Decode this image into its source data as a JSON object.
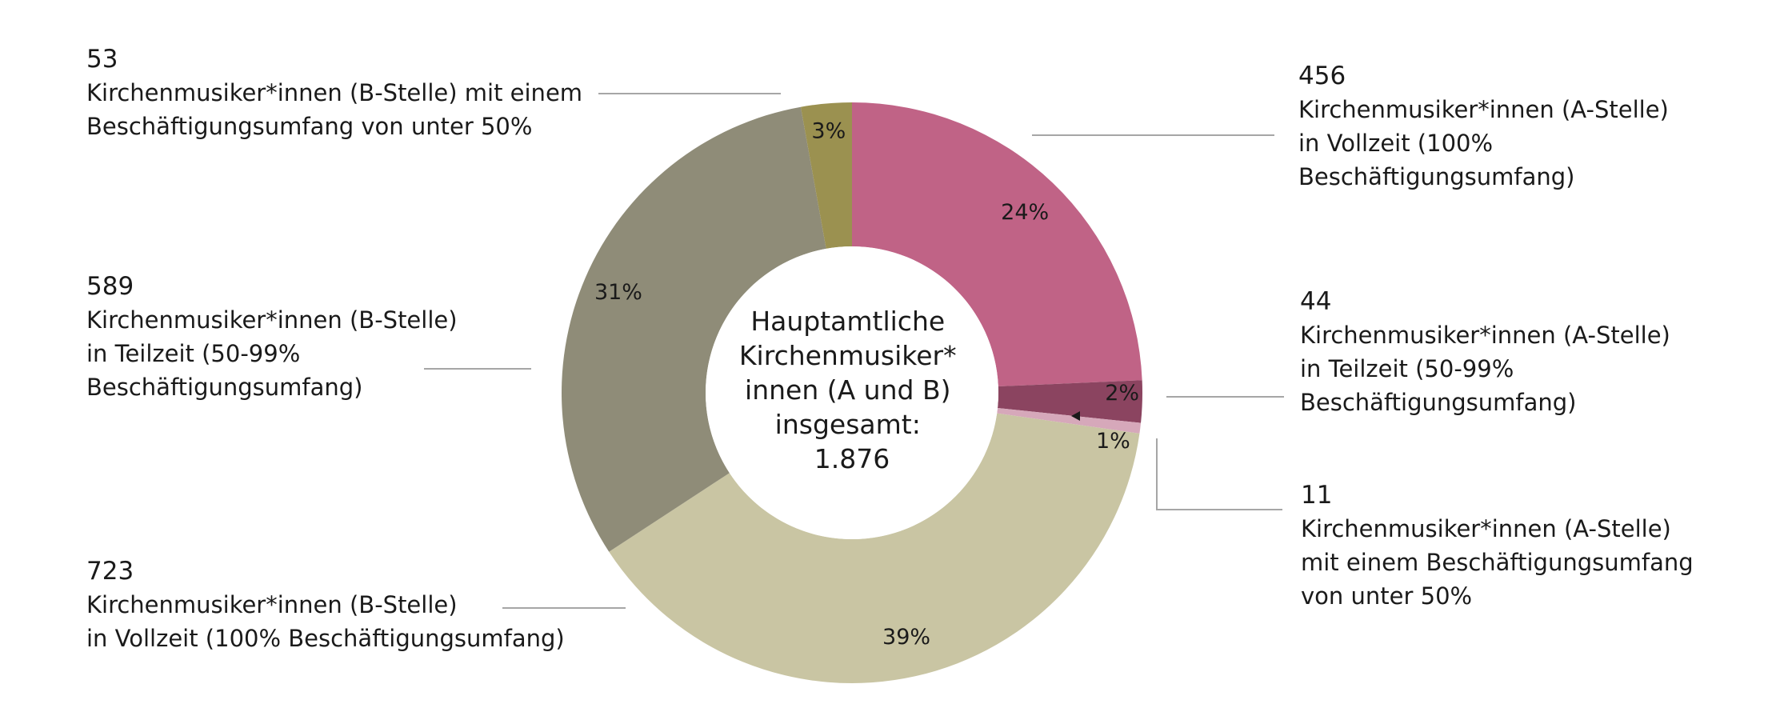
{
  "chart_data": {
    "type": "pie",
    "donut": true,
    "center_label": [
      "Hauptamtliche",
      "Kirchenmusiker*",
      "innen (A und B)",
      "insgesamt:",
      "1.876"
    ],
    "slices": [
      {
        "value": 456,
        "percent_label": "24%",
        "number_label": "456",
        "text": "Kirchenmusiker*innen (A-Stelle)\nin Vollzeit (100%\nBeschäftigungsumfang)",
        "color": "#c06386"
      },
      {
        "value": 44,
        "percent_label": "2%",
        "number_label": "44",
        "text": "Kirchenmusiker*innen (A-Stelle)\nin Teilzeit (50-99%\nBeschäftigungsumfang)",
        "color": "#8b4460"
      },
      {
        "value": 11,
        "percent_label": "1%",
        "number_label": "11",
        "text": "Kirchenmusiker*innen (A-Stelle)\nmit einem Beschäftigungsumfang\nvon unter 50%",
        "color": "#d6a8ba"
      },
      {
        "value": 723,
        "percent_label": "39%",
        "number_label": "723",
        "text": "Kirchenmusiker*innen (B-Stelle)\nin Vollzeit (100% Beschäftigungsumfang)",
        "color": "#c9c5a3"
      },
      {
        "value": 589,
        "percent_label": "31%",
        "number_label": "589",
        "text": "Kirchenmusiker*innen (B-Stelle)\nin Teilzeit (50-99%\nBeschäftigungsumfang)",
        "color": "#8f8c78"
      },
      {
        "value": 53,
        "percent_label": "3%",
        "number_label": "53",
        "text": "Kirchenmusiker*innen (B-Stelle)  mit einem\nBeschäftigungsumfang von unter 50%",
        "color": "#9b9150"
      }
    ]
  }
}
